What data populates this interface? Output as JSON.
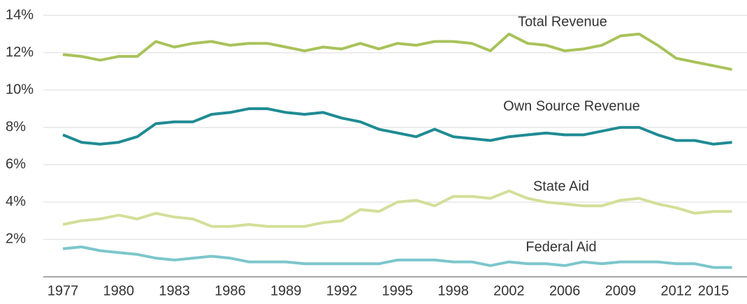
{
  "chart_data": {
    "type": "line",
    "categories": [
      "1977",
      null,
      null,
      "1980",
      null,
      null,
      "1983",
      null,
      null,
      "1986",
      null,
      null,
      "1989",
      null,
      null,
      "1992",
      null,
      null,
      "1995",
      null,
      null,
      "1998",
      null,
      null,
      "2002",
      null,
      null,
      "2006",
      null,
      null,
      "2009",
      null,
      null,
      "2012",
      null,
      "2015",
      null
    ],
    "series": [
      {
        "name": "Total Revenue",
        "color": "#a8c25a",
        "values": [
          11.9,
          11.8,
          11.6,
          11.8,
          11.8,
          12.6,
          12.3,
          12.5,
          12.6,
          12.4,
          12.5,
          12.5,
          12.3,
          12.1,
          12.3,
          12.2,
          12.5,
          12.2,
          12.5,
          12.4,
          12.6,
          12.6,
          12.5,
          12.1,
          13.0,
          12.5,
          12.4,
          12.1,
          12.2,
          12.4,
          12.9,
          13.0,
          12.4,
          11.7,
          11.5,
          11.3,
          11.1
        ]
      },
      {
        "name": "Own Source Revenue",
        "color": "#1f8b93",
        "values": [
          7.6,
          7.2,
          7.1,
          7.2,
          7.5,
          8.2,
          8.3,
          8.3,
          8.7,
          8.8,
          9.0,
          9.0,
          8.8,
          8.7,
          8.8,
          8.5,
          8.3,
          7.9,
          7.7,
          7.5,
          7.9,
          7.5,
          7.4,
          7.3,
          7.5,
          7.6,
          7.7,
          7.6,
          7.6,
          7.8,
          8.0,
          8.0,
          7.6,
          7.3,
          7.3,
          7.1,
          7.2
        ]
      },
      {
        "name": "State Aid",
        "color": "#d2df98",
        "values": [
          2.8,
          3.0,
          3.1,
          3.3,
          3.1,
          3.4,
          3.2,
          3.1,
          2.7,
          2.7,
          2.8,
          2.7,
          2.7,
          2.7,
          2.9,
          3.0,
          3.6,
          3.5,
          4.0,
          4.1,
          3.8,
          4.3,
          4.3,
          4.2,
          4.6,
          4.2,
          4.0,
          3.9,
          3.8,
          3.8,
          4.1,
          4.2,
          3.9,
          3.7,
          3.4,
          3.5,
          3.5
        ]
      },
      {
        "name": "Federal Aid",
        "color": "#7cc6cc",
        "values": [
          1.5,
          1.6,
          1.4,
          1.3,
          1.2,
          1.0,
          0.9,
          1.0,
          1.1,
          1.0,
          0.8,
          0.8,
          0.8,
          0.7,
          0.7,
          0.7,
          0.7,
          0.7,
          0.9,
          0.9,
          0.9,
          0.8,
          0.8,
          0.6,
          0.8,
          0.7,
          0.7,
          0.6,
          0.8,
          0.7,
          0.8,
          0.8,
          0.8,
          0.7,
          0.7,
          0.5,
          0.5
        ]
      }
    ],
    "ylim": [
      0,
      14
    ],
    "yticks": [
      {
        "value": 2,
        "label": "2%"
      },
      {
        "value": 4,
        "label": "4%"
      },
      {
        "value": 6,
        "label": "6%"
      },
      {
        "value": 8,
        "label": "8%"
      },
      {
        "value": 10,
        "label": "10%"
      },
      {
        "value": 12,
        "label": "12%"
      },
      {
        "value": 14,
        "label": "14%"
      }
    ],
    "grid": true
  }
}
